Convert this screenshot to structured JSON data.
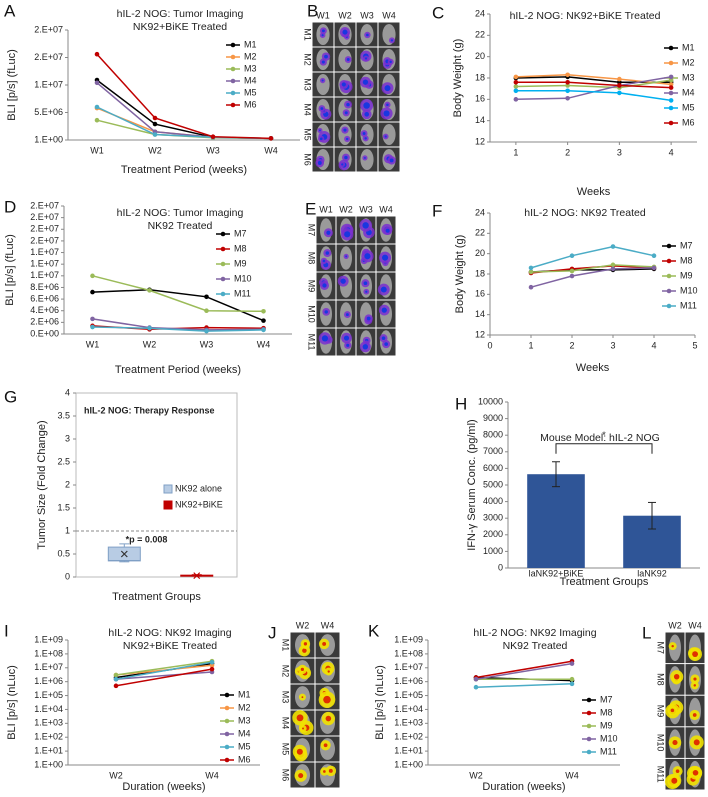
{
  "chart_data": [
    {
      "panel": "A",
      "type": "line",
      "title": "hIL-2 NOG: Tumor Imaging",
      "subtitle": "NK92+BiKE Treated",
      "y_label": "BLI [p/s] (fLuc)",
      "x_label": "Treatment Period (weeks)",
      "categories": [
        "W1",
        "W2",
        "W3",
        "W4"
      ],
      "ylim": [
        1,
        20000000
      ],
      "yticks": [
        {
          "value": 1,
          "label": "1.E+00"
        },
        {
          "value": 5000000,
          "label": "5.E+06"
        },
        {
          "value": 10000000,
          "label": "1.E+07"
        },
        {
          "value": 15000000,
          "label": "2.E+07"
        },
        {
          "value": 20000000,
          "label": "2.E+07"
        }
      ],
      "legend": "right",
      "series": [
        {
          "name": "M1",
          "color": "#000000",
          "values": [
            10900000,
            2900000,
            500000,
            300000
          ]
        },
        {
          "name": "M2",
          "color": "#f79646",
          "values": [
            5800000,
            1500000,
            500000,
            300000
          ]
        },
        {
          "name": "M3",
          "color": "#9bbb59",
          "values": [
            3600000,
            1000000,
            400000,
            300000
          ]
        },
        {
          "name": "M4",
          "color": "#8064a2",
          "values": [
            10400000,
            1500000,
            500000,
            300000
          ]
        },
        {
          "name": "M5",
          "color": "#4bacc6",
          "values": [
            6000000,
            1000000,
            500000,
            300000
          ]
        },
        {
          "name": "M6",
          "color": "#c00000",
          "values": [
            15600000,
            4000000,
            600000,
            300000
          ]
        }
      ]
    },
    {
      "panel": "C",
      "type": "line",
      "title": "hIL-2 NOG: NK92+BiKE Treated",
      "y_label": "Body Weight (g)",
      "x_label": "Weeks",
      "x": [
        1,
        2,
        3,
        4
      ],
      "xlim": [
        0.5,
        4.5
      ],
      "xticks": [
        1,
        2,
        3,
        4
      ],
      "ylim": [
        12,
        24
      ],
      "yticks": [
        12,
        14,
        16,
        18,
        20,
        22,
        24
      ],
      "legend": "right",
      "series": [
        {
          "name": "M1",
          "color": "#000000",
          "values": [
            18,
            18.1,
            17.6,
            17.6
          ]
        },
        {
          "name": "M2",
          "color": "#f79646",
          "values": [
            18.1,
            18.3,
            17.9,
            17.4
          ]
        },
        {
          "name": "M3",
          "color": "#9bbb59",
          "values": [
            17.2,
            17.3,
            17.1,
            17.8
          ]
        },
        {
          "name": "M4",
          "color": "#8064a2",
          "values": [
            16,
            16.1,
            17.3,
            18.1
          ]
        },
        {
          "name": "M5",
          "color": "#00b0f0",
          "values": [
            16.8,
            16.8,
            16.6,
            15.9
          ]
        },
        {
          "name": "M6",
          "color": "#c00000",
          "values": [
            17.6,
            17.6,
            17.3,
            17.1
          ]
        }
      ]
    },
    {
      "panel": "D",
      "type": "line",
      "title": "hIL-2 NOG: Tumor Imaging",
      "subtitle": "NK92 Treated",
      "y_label": "BLI [p/s] (fLuc)",
      "x_label": "Treatment Period (weeks)",
      "categories": [
        "W1",
        "W2",
        "W3",
        "W4"
      ],
      "ylim": [
        0,
        22000000
      ],
      "yticks": [
        {
          "value": 0,
          "label": "0.E+00"
        },
        {
          "value": 2000000,
          "label": "2.E+06"
        },
        {
          "value": 4000000,
          "label": "4.E+06"
        },
        {
          "value": 6000000,
          "label": "6.E+06"
        },
        {
          "value": 8000000,
          "label": "8.E+06"
        },
        {
          "value": 10000000,
          "label": "1.E+07"
        },
        {
          "value": 12000000,
          "label": "1.E+07"
        },
        {
          "value": 14000000,
          "label": "1.E+07"
        },
        {
          "value": 16000000,
          "label": "2.E+07"
        },
        {
          "value": 18000000,
          "label": "2.E+07"
        },
        {
          "value": 20000000,
          "label": "2.E+07"
        },
        {
          "value": 22000000,
          "label": "2.E+07"
        }
      ],
      "legend": "right",
      "series": [
        {
          "name": "M7",
          "color": "#000000",
          "values": [
            7200000,
            7600000,
            6400000,
            2300000
          ]
        },
        {
          "name": "M8",
          "color": "#c00000",
          "values": [
            1400000,
            800000,
            1100000,
            1000000
          ]
        },
        {
          "name": "M9",
          "color": "#9bbb59",
          "values": [
            10000000,
            7500000,
            4000000,
            3900000
          ]
        },
        {
          "name": "M10",
          "color": "#8064a2",
          "values": [
            2600000,
            1100000,
            700000,
            800000
          ]
        },
        {
          "name": "M11",
          "color": "#4bacc6",
          "values": [
            1200000,
            1000000,
            500000,
            700000
          ]
        }
      ]
    },
    {
      "panel": "F",
      "type": "line",
      "title": "hIL-2 NOG: NK92 Treated",
      "y_label": "Body Weight (g)",
      "x_label": "Weeks",
      "x": [
        1,
        2,
        3,
        4
      ],
      "xlim": [
        0,
        5
      ],
      "xticks": [
        0,
        1,
        2,
        3,
        4,
        5
      ],
      "ylim": [
        12,
        24
      ],
      "yticks": [
        12,
        14,
        16,
        18,
        20,
        22,
        24
      ],
      "legend": "right",
      "series": [
        {
          "name": "M7",
          "color": "#000000",
          "values": [
            18.2,
            18.4,
            18.4,
            18.5
          ]
        },
        {
          "name": "M8",
          "color": "#c00000",
          "values": [
            18.1,
            18.5,
            18.8,
            18.6
          ]
        },
        {
          "name": "M9",
          "color": "#9bbb59",
          "values": [
            18.2,
            18.3,
            18.9,
            18.7
          ]
        },
        {
          "name": "M10",
          "color": "#8064a2",
          "values": [
            16.7,
            17.8,
            18.5,
            18.6
          ]
        },
        {
          "name": "M11",
          "color": "#4bacc6",
          "values": [
            18.6,
            19.8,
            20.7,
            19.8
          ]
        }
      ]
    },
    {
      "panel": "G",
      "type": "box",
      "title": "hIL-2 NOG: Therapy Response",
      "y_label": "Tumor Size (Fold Change)",
      "x_label": "Treatment  Groups",
      "ylim": [
        0,
        4
      ],
      "yticks": [
        0,
        0.5,
        1,
        1.5,
        2,
        2.5,
        3,
        3.5,
        4
      ],
      "ref_line": 1,
      "annotation": "*p = 0.008",
      "series": [
        {
          "name": "NK92 alone",
          "color": "#b8cce4",
          "whisker_low": 0.33,
          "q1": 0.35,
          "median": 0.36,
          "q3": 0.65,
          "whisker_high": 0.72,
          "mean": 0.5
        },
        {
          "name": "NK92+BiKE",
          "color": "#c00000",
          "whisker_low": 0.02,
          "q1": 0.03,
          "median": 0.03,
          "q3": 0.04,
          "whisker_high": 0.05,
          "mean": 0.03
        }
      ]
    },
    {
      "panel": "H",
      "type": "bar",
      "title": "Mouse Model: hIL-2 NOG",
      "y_label": "IFN-γ Serum Conc. (pg/ml)",
      "x_label": "Treatment Groups",
      "categories": [
        "laNK92+BiKE",
        "laNK92"
      ],
      "values": [
        5650,
        3150
      ],
      "errors": [
        750,
        800
      ],
      "color": "#2f5597",
      "annotation": "*",
      "ylim": [
        0,
        10000
      ],
      "yticks": [
        0,
        1000,
        2000,
        3000,
        4000,
        5000,
        6000,
        7000,
        8000,
        9000,
        10000
      ]
    },
    {
      "panel": "I",
      "type": "line",
      "title": "hIL-2 NOG: NK92 Imaging",
      "subtitle": "NK92+BiKE Treated",
      "y_label": "BLI [p/s] (nLuc)",
      "x_label": "Duration (weeks)",
      "log_scale": true,
      "categories": [
        "W2",
        "W4"
      ],
      "ylim": [
        1,
        1000000000
      ],
      "yticks": [
        {
          "value": 1,
          "label": "1.E+00"
        },
        {
          "value": 10,
          "label": "1.E+01"
        },
        {
          "value": 100,
          "label": "1.E+02"
        },
        {
          "value": 1000,
          "label": "1.E+03"
        },
        {
          "value": 10000,
          "label": "1.E+04"
        },
        {
          "value": 100000,
          "label": "1.E+05"
        },
        {
          "value": 1000000,
          "label": "1.E+06"
        },
        {
          "value": 10000000,
          "label": "1.E+07"
        },
        {
          "value": 100000000,
          "label": "1.E+08"
        },
        {
          "value": 1000000000,
          "label": "1.E+09"
        }
      ],
      "legend": "right",
      "series": [
        {
          "name": "M1",
          "color": "#000000",
          "values": [
            2000000,
            20000000
          ]
        },
        {
          "name": "M2",
          "color": "#f79646",
          "values": [
            3000000,
            15000000
          ]
        },
        {
          "name": "M3",
          "color": "#9bbb59",
          "values": [
            3000000,
            30000000
          ]
        },
        {
          "name": "M4",
          "color": "#8064a2",
          "values": [
            1500000,
            5000000
          ]
        },
        {
          "name": "M5",
          "color": "#4bacc6",
          "values": [
            1500000,
            25000000
          ]
        },
        {
          "name": "M6",
          "color": "#c00000",
          "values": [
            500000,
            8000000
          ]
        }
      ]
    },
    {
      "panel": "K",
      "type": "line",
      "title": "hIL-2 NOG: NK92 Imaging",
      "subtitle": "NK92 Treated",
      "y_label": "BLI [p/s] (nLuc)",
      "x_label": "Duration (weeks)",
      "log_scale": true,
      "categories": [
        "W2",
        "W4"
      ],
      "ylim": [
        1,
        1000000000
      ],
      "yticks": [
        {
          "value": 1,
          "label": "1.E+00"
        },
        {
          "value": 10,
          "label": "1.E+01"
        },
        {
          "value": 100,
          "label": "1.E+02"
        },
        {
          "value": 1000,
          "label": "1.E+03"
        },
        {
          "value": 10000,
          "label": "1.E+04"
        },
        {
          "value": 100000,
          "label": "1.E+05"
        },
        {
          "value": 1000000,
          "label": "1.E+06"
        },
        {
          "value": 10000000,
          "label": "1.E+07"
        },
        {
          "value": 100000000,
          "label": "1.E+08"
        },
        {
          "value": 1000000000,
          "label": "1.E+09"
        }
      ],
      "legend": "right",
      "series": [
        {
          "name": "M7",
          "color": "#000000",
          "values": [
            2000000,
            1200000
          ]
        },
        {
          "name": "M8",
          "color": "#c00000",
          "values": [
            2000000,
            30000000
          ]
        },
        {
          "name": "M9",
          "color": "#9bbb59",
          "values": [
            1500000,
            1500000
          ]
        },
        {
          "name": "M10",
          "color": "#8064a2",
          "values": [
            1500000,
            20000000
          ]
        },
        {
          "name": "M11",
          "color": "#4bacc6",
          "values": [
            400000,
            700000
          ]
        }
      ]
    }
  ],
  "images": [
    {
      "panel": "B",
      "columns": [
        "W1",
        "W2",
        "W3",
        "W4"
      ],
      "rows": [
        "M1",
        "M2",
        "M3",
        "M4",
        "M5",
        "M6"
      ]
    },
    {
      "panel": "E",
      "columns": [
        "W1",
        "W2",
        "W3",
        "W4"
      ],
      "rows": [
        "M7",
        "M8",
        "M9",
        "M10",
        "M11"
      ]
    },
    {
      "panel": "J",
      "columns": [
        "W2",
        "W4"
      ],
      "rows": [
        "M1",
        "M2",
        "M3",
        "M4",
        "M5",
        "M6"
      ]
    },
    {
      "panel": "L",
      "columns": [
        "W2",
        "W4"
      ],
      "rows": [
        "M7",
        "M8",
        "M9",
        "M10",
        "M11"
      ]
    }
  ]
}
